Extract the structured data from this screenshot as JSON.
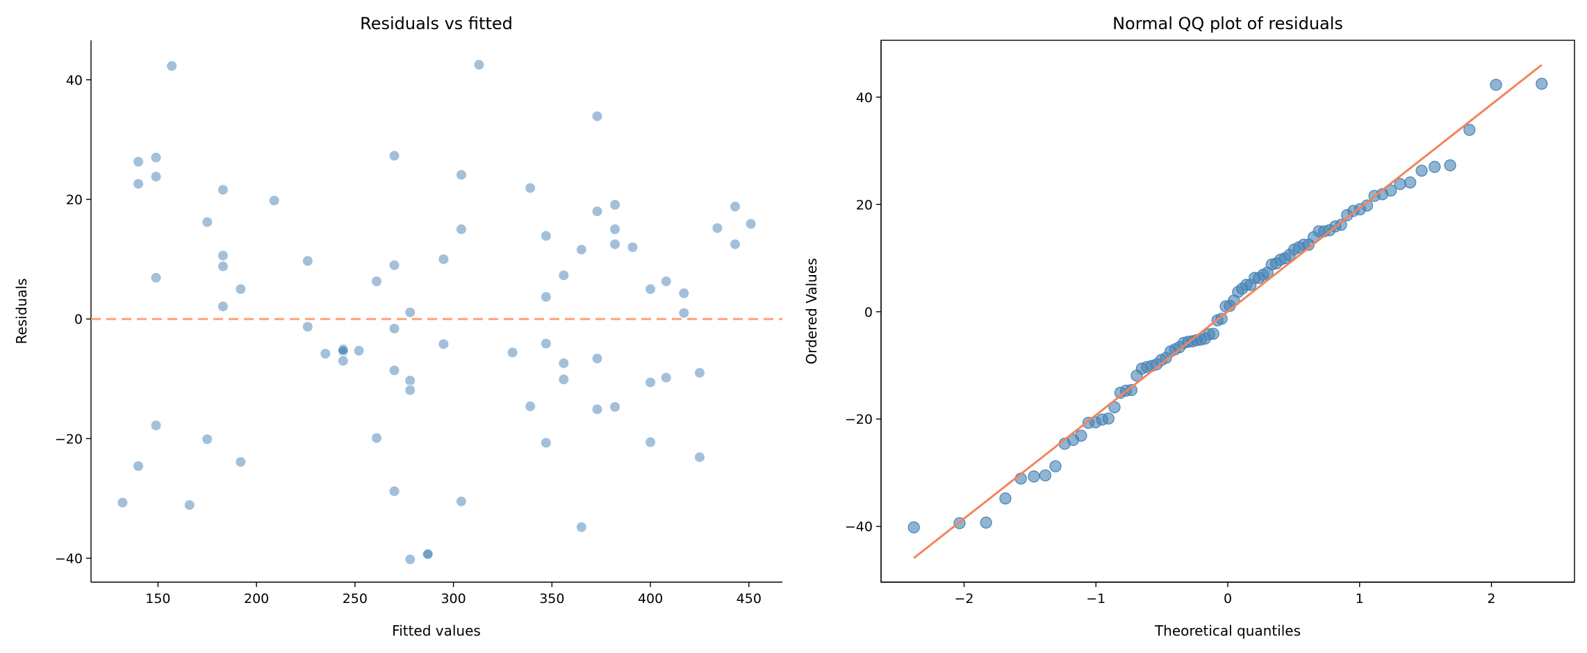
{
  "chart_data": [
    {
      "type": "scatter",
      "title": "Residuals vs fitted",
      "xlabel": "Fitted values",
      "ylabel": "Residuals",
      "xlim": [
        116,
        467
      ],
      "ylim": [
        -44,
        46.6
      ],
      "xticks": [
        150,
        200,
        250,
        300,
        350,
        400,
        450
      ],
      "yticks": [
        -40,
        -20,
        0,
        20,
        40
      ],
      "grid": false,
      "marker_color": "#4682b4",
      "reference_line": {
        "y": 0,
        "style": "dashed",
        "color": "#ffa07a"
      },
      "points": [
        [
          132,
          -30.7
        ],
        [
          140,
          26.3
        ],
        [
          140,
          22.6
        ],
        [
          140,
          -24.6
        ],
        [
          149,
          27
        ],
        [
          149,
          23.8
        ],
        [
          149,
          6.9
        ],
        [
          149,
          -17.8
        ],
        [
          157,
          42.3
        ],
        [
          166,
          -31.1
        ],
        [
          175,
          16.2
        ],
        [
          175,
          -20.1
        ],
        [
          183,
          21.6
        ],
        [
          183,
          10.6
        ],
        [
          183,
          8.8
        ],
        [
          183,
          2.1
        ],
        [
          192,
          5
        ],
        [
          192,
          -23.9
        ],
        [
          209,
          19.8
        ],
        [
          226,
          9.7
        ],
        [
          226,
          -1.3
        ],
        [
          235,
          -5.8
        ],
        [
          244,
          -5
        ],
        [
          244,
          -5.5
        ],
        [
          244,
          -7
        ],
        [
          252,
          -5.3
        ],
        [
          261,
          6.3
        ],
        [
          261,
          -19.9
        ],
        [
          270,
          27.3
        ],
        [
          270,
          9
        ],
        [
          270,
          -1.6
        ],
        [
          270,
          -8.6
        ],
        [
          270,
          -28.8
        ],
        [
          278,
          1.1
        ],
        [
          278,
          -10.3
        ],
        [
          278,
          -11.9
        ],
        [
          278,
          -40.2
        ],
        [
          287,
          -39.4
        ],
        [
          287,
          -39.3
        ],
        [
          295,
          10
        ],
        [
          295,
          -4.2
        ],
        [
          304,
          24.1
        ],
        [
          304,
          15
        ],
        [
          304,
          -30.5
        ],
        [
          313,
          42.5
        ],
        [
          330,
          -5.6
        ],
        [
          339,
          21.9
        ],
        [
          339,
          -14.6
        ],
        [
          347,
          13.9
        ],
        [
          347,
          3.7
        ],
        [
          347,
          -4.1
        ],
        [
          347,
          -20.7
        ],
        [
          356,
          7.3
        ],
        [
          356,
          -7.4
        ],
        [
          356,
          -10.1
        ],
        [
          365,
          11.6
        ],
        [
          365,
          -34.8
        ],
        [
          373,
          33.9
        ],
        [
          373,
          18
        ],
        [
          373,
          -6.6
        ],
        [
          373,
          -15.1
        ],
        [
          382,
          19.1
        ],
        [
          382,
          15
        ],
        [
          382,
          12.5
        ],
        [
          382,
          -14.7
        ],
        [
          391,
          12
        ],
        [
          400,
          5
        ],
        [
          400,
          -10.6
        ],
        [
          400,
          -20.6
        ],
        [
          408,
          6.3
        ],
        [
          408,
          -9.8
        ],
        [
          417,
          4.3
        ],
        [
          417,
          1
        ],
        [
          425,
          -9
        ],
        [
          425,
          -23.1
        ],
        [
          434,
          15.2
        ],
        [
          443,
          18.8
        ],
        [
          443,
          12.5
        ],
        [
          451,
          15.9
        ],
        [
          244,
          -5.2
        ]
      ]
    },
    {
      "type": "scatter",
      "title": "Normal QQ plot of residuals",
      "xlabel": "Theoretical quantiles",
      "ylabel": "Ordered Values",
      "xlim": [
        -2.63,
        2.63
      ],
      "ylim": [
        -50.4,
        50.6
      ],
      "xticks": [
        -2,
        -1,
        0,
        1,
        2
      ],
      "yticks": [
        -40,
        -20,
        0,
        20,
        40
      ],
      "grid": false,
      "marker_color": "#4682b4",
      "points_source": "sorted residuals vs normal theoretical quantiles",
      "fit_line": {
        "slope": 19.3,
        "intercept": 0.05,
        "color": "#f4845a"
      }
    }
  ]
}
